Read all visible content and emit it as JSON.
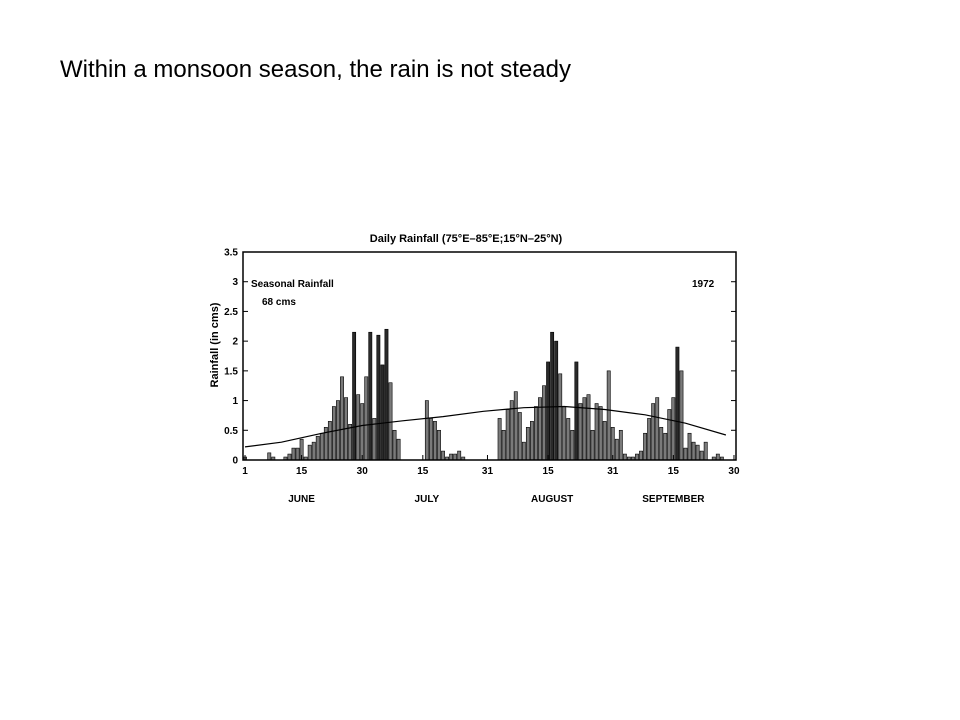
{
  "slide": {
    "title": "Within a monsoon season, the rain is not steady"
  },
  "chart_data": {
    "type": "bar",
    "title": "Daily Rainfall (75°E–85°E;15°N–25°N)",
    "ylabel": "Rainfall (in cms)",
    "xlabel": "",
    "ylim": [
      0,
      3.5
    ],
    "yticks": [
      "0",
      "0.5",
      "1",
      "1.5",
      "2",
      "2.5",
      "3",
      "3.5"
    ],
    "xticks": [
      {
        "day": 1,
        "label": "1"
      },
      {
        "day": 15,
        "label": "15"
      },
      {
        "day": 30,
        "label": "30"
      },
      {
        "day": 45,
        "label": "15"
      },
      {
        "day": 61,
        "label": "31"
      },
      {
        "day": 76,
        "label": "15"
      },
      {
        "day": 92,
        "label": "31"
      },
      {
        "day": 107,
        "label": "15"
      },
      {
        "day": 122,
        "label": "30"
      }
    ],
    "months": [
      {
        "label": "JUNE",
        "center_day": 15
      },
      {
        "label": "JULY",
        "center_day": 46
      },
      {
        "label": "AUGUST",
        "center_day": 77
      },
      {
        "label": "SEPTEMBER",
        "center_day": 107
      }
    ],
    "annotations": {
      "seasonal_line1": "Seasonal Rainfall",
      "seasonal_line2": "68 cms",
      "year": "1972"
    },
    "days": [
      1,
      2,
      3,
      4,
      5,
      6,
      7,
      8,
      9,
      10,
      11,
      12,
      13,
      14,
      15,
      16,
      17,
      18,
      19,
      20,
      21,
      22,
      23,
      24,
      25,
      26,
      27,
      28,
      29,
      30,
      31,
      32,
      33,
      34,
      35,
      36,
      37,
      38,
      39,
      40,
      41,
      42,
      43,
      44,
      45,
      46,
      47,
      48,
      49,
      50,
      51,
      52,
      53,
      54,
      55,
      56,
      57,
      58,
      59,
      60,
      61,
      62,
      63,
      64,
      65,
      66,
      67,
      68,
      69,
      70,
      71,
      72,
      73,
      74,
      75,
      76,
      77,
      78,
      79,
      80,
      81,
      82,
      83,
      84,
      85,
      86,
      87,
      88,
      89,
      90,
      91,
      92,
      93,
      94,
      95,
      96,
      97,
      98,
      99,
      100,
      101,
      102,
      103,
      104,
      105,
      106,
      107,
      108,
      109,
      110,
      111,
      112,
      113,
      114,
      115,
      116,
      117,
      118,
      119,
      120,
      121,
      122
    ],
    "values": [
      0.05,
      0,
      0,
      0,
      0,
      0,
      0.12,
      0.05,
      0,
      0,
      0.05,
      0.1,
      0.2,
      0.2,
      0.35,
      0.05,
      0.25,
      0.3,
      0.4,
      0.45,
      0.55,
      0.65,
      0.9,
      1.0,
      1.4,
      1.05,
      0.6,
      2.15,
      1.1,
      0.95,
      1.4,
      2.15,
      0.7,
      2.1,
      1.6,
      2.2,
      1.3,
      0.5,
      0.35,
      0,
      0,
      0,
      0,
      0,
      0,
      1.0,
      0.7,
      0.65,
      0.5,
      0.15,
      0.05,
      0.1,
      0.1,
      0.15,
      0.05,
      0,
      0,
      0,
      0,
      0,
      0,
      0,
      0,
      0.7,
      0.5,
      0.85,
      1.0,
      1.15,
      0.8,
      0.3,
      0.55,
      0.65,
      0.9,
      1.05,
      1.25,
      1.65,
      2.15,
      2.0,
      1.45,
      0.9,
      0.7,
      0.5,
      1.65,
      0.95,
      1.05,
      1.1,
      0.5,
      0.95,
      0.9,
      0.65,
      1.5,
      0.55,
      0.35,
      0.5,
      0.1,
      0.05,
      0.05,
      0.1,
      0.15,
      0.45,
      0.7,
      0.95,
      1.05,
      0.55,
      0.45,
      0.85,
      1.05,
      1.9,
      1.5,
      0.2,
      0.45,
      0.3,
      0.25,
      0.15,
      0.3,
      0,
      0.05,
      0.1,
      0.05,
      0,
      0,
      0
    ],
    "seasonal_mean": {
      "days": [
        1,
        10,
        20,
        30,
        40,
        50,
        60,
        70,
        80,
        90,
        100,
        110,
        120
      ],
      "values": [
        0.22,
        0.3,
        0.45,
        0.58,
        0.66,
        0.73,
        0.82,
        0.88,
        0.9,
        0.85,
        0.76,
        0.62,
        0.42
      ]
    }
  }
}
